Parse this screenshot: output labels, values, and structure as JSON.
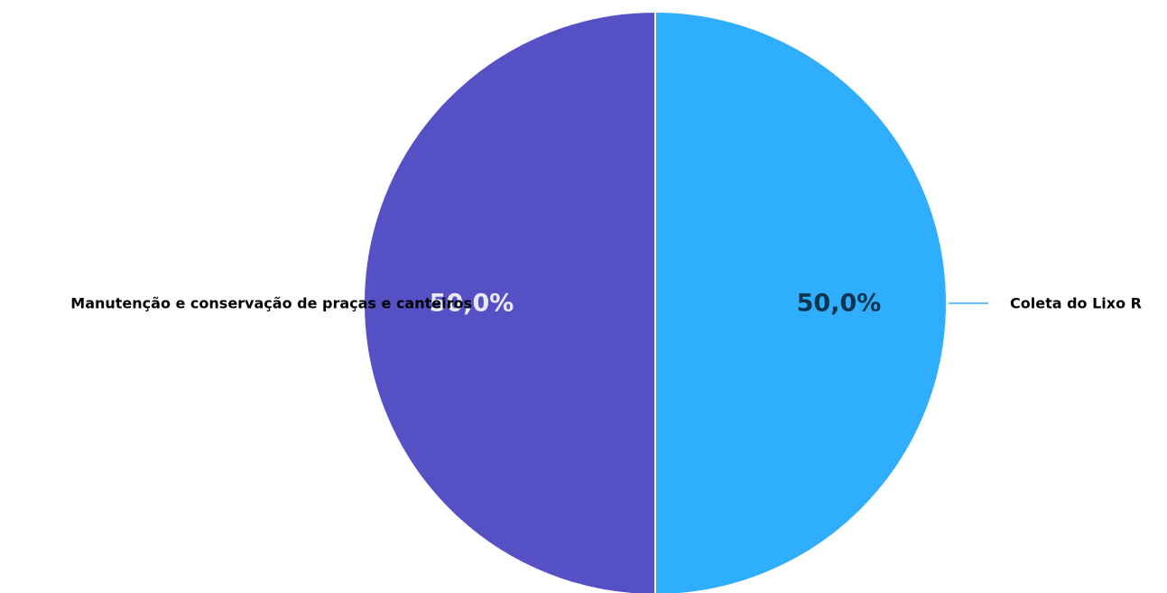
{
  "chart_data": {
    "type": "pie",
    "categories": [
      "Coleta do Lixo R",
      "Manutenção e conservação de praças e canteiros"
    ],
    "values": [
      50.0,
      50.0
    ],
    "data_labels": [
      "50,0%",
      "50,0%"
    ],
    "colors": [
      "#2EAEFD",
      "#5551C5"
    ],
    "label_colors": [
      "#0B3550",
      "#E9E8F8"
    ],
    "leader_line_color": "#2EAEFD",
    "slice_border_color": "#ffffff",
    "legend": "none"
  }
}
